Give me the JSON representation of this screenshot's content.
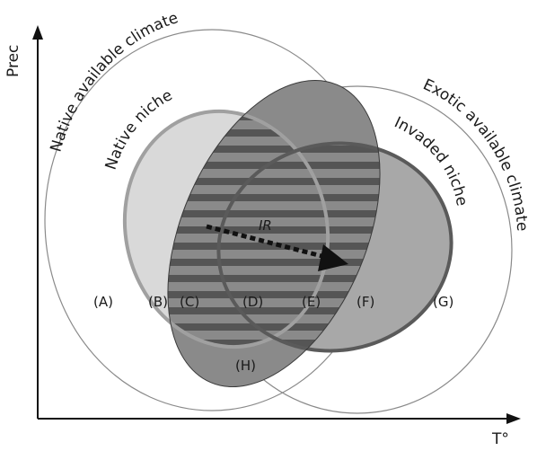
{
  "axes": {
    "y_label": "Prec",
    "x_label": "T°"
  },
  "curved_labels": {
    "native_available": "Native available climate",
    "native_niche": "Native niche",
    "exotic_available": "Exotic available climate",
    "invaded_niche": "Invaded niche"
  },
  "arrow_label": "IR",
  "regions": {
    "a": "(A)",
    "b": "(B)",
    "c": "(C)",
    "d": "(D)",
    "e": "(E)",
    "f": "(F)",
    "g": "(G)",
    "h": "(H)"
  },
  "colors": {
    "native_niche_fill": "#d9d9d9",
    "native_niche_stroke": "#a0a0a0",
    "invaded_niche_fill": "#a8a8a8",
    "invaded_niche_stroke": "#5a5a5a",
    "overlap_fill": "#8a8a8a",
    "stripe": "#555555",
    "axis": "#111111"
  }
}
